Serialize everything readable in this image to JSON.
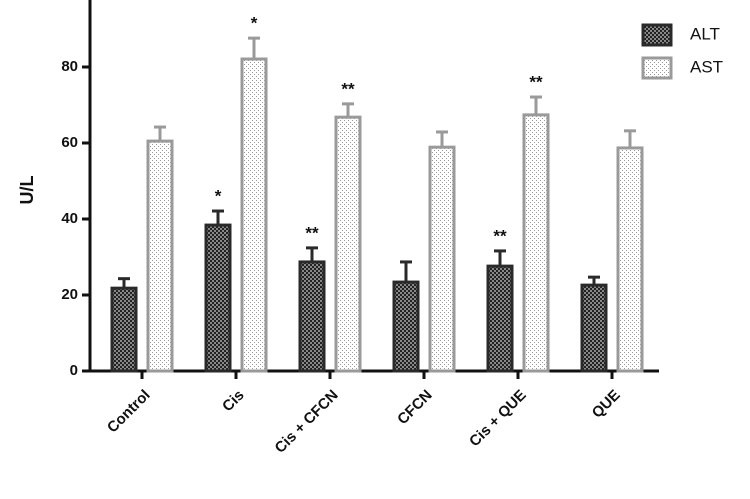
{
  "chart_data": {
    "type": "bar",
    "y_label": "U/L",
    "categories": [
      "Control",
      "Cis",
      "Cis + CFCN",
      "CFCN",
      "Cis + QUE",
      "QUE"
    ],
    "series": [
      {
        "name": "ALT",
        "color": "#2a2a2a",
        "values": [
          21.8,
          38.4,
          28.7,
          23.4,
          27.6,
          22.6
        ],
        "errors": [
          2.5,
          3.7,
          3.7,
          5.3,
          4.0,
          2.1
        ],
        "annotations": [
          null,
          "*",
          "**",
          null,
          "**",
          null
        ]
      },
      {
        "name": "AST",
        "color": "#9a9a9a",
        "values": [
          60.5,
          82.1,
          66.8,
          58.9,
          67.4,
          58.7
        ],
        "errors": [
          3.7,
          5.5,
          3.5,
          4.0,
          4.7,
          4.5
        ],
        "annotations": [
          null,
          "*",
          "**",
          null,
          "**",
          null
        ]
      }
    ],
    "ylim": [
      0,
      100
    ],
    "yticks": [
      0,
      20,
      40,
      60,
      80
    ],
    "legend": "top-right"
  }
}
